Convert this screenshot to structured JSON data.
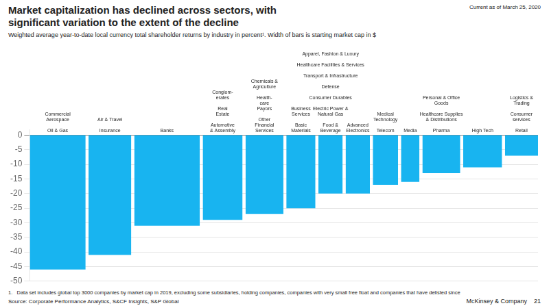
{
  "chart_data": {
    "type": "bar",
    "title": [
      "Market capitalization has declined across sectors, with",
      "significant variation to the extent of the decline"
    ],
    "subtitle": "Weighted average year-to-date local currency total shareholder returns by industry in percent¹. Width of bars is starting market cap in $",
    "note": "Current as of March 25, 2020",
    "footnote": "1.   Data set includes global top 3000 companies by market cap in 2019, excluding some subsidiaries, holding companies, companies with very small free float and companies that have delisted since",
    "source": "Source: Corporate Performance Analytics, S&CF Insights, S&P Global",
    "branding": "McKinsey & Company    21",
    "categories": [
      [
        [
          "Commercial",
          "Aerospace"
        ],
        [
          "Oil & Gas"
        ]
      ],
      [
        [
          "Air & Travel"
        ],
        [
          "Insurance"
        ]
      ],
      [
        [
          "Banks"
        ]
      ],
      [
        [
          "Conglom-",
          "erates"
        ],
        [
          "Real",
          "Estate"
        ],
        [
          "Automotive",
          "& Assembly"
        ]
      ],
      [
        [
          "Chemicals &",
          "Agriculture"
        ],
        [
          "Health-",
          "care",
          "Payors"
        ],
        [
          "Other",
          "Financial",
          "Services"
        ]
      ],
      [
        [
          "Business",
          "Services"
        ],
        [
          "Basic",
          "Materials"
        ]
      ],
      [
        [
          "Apparel, Fashion & Luxury"
        ],
        [
          "Healthcare Facilities & Services"
        ],
        [
          "Transport & Infrastructure"
        ],
        [
          "Defense"
        ],
        [
          "Consumer Durables"
        ],
        [
          "Electric Power &",
          "Natural Gas"
        ],
        [
          "Food &",
          "Beverage"
        ]
      ],
      [
        [
          "Advanced",
          "Electronics"
        ]
      ],
      [
        [
          "Medical",
          "Technology"
        ],
        [
          "Telecom"
        ]
      ],
      [
        [
          "Media"
        ]
      ],
      [
        [
          "Personal & Office",
          "Goods"
        ],
        [
          "Healthcare Supplies",
          "& Distributions"
        ],
        [
          "Pharma"
        ]
      ],
      [
        [
          "High Tech"
        ]
      ],
      [
        [
          "Logistics &",
          "Trading"
        ],
        [
          "Consumer",
          "services"
        ],
        [
          "Retail"
        ]
      ]
    ],
    "values": [
      -46,
      -41,
      -31,
      -29,
      -27,
      -25,
      -20,
      -20,
      -17,
      -16,
      -13,
      -11,
      -7
    ],
    "widths": [
      1.15,
      0.88,
      1.35,
      0.82,
      0.78,
      0.6,
      0.5,
      0.5,
      0.52,
      0.38,
      0.78,
      0.8,
      0.68
    ],
    "color": "#18b4f0",
    "ylim": [
      -50,
      2
    ],
    "yticks": [
      0,
      -5,
      -10,
      -15,
      -20,
      -25,
      -30,
      -35,
      -40,
      -45,
      -50
    ],
    "grid": true,
    "tick_labels": "y"
  }
}
